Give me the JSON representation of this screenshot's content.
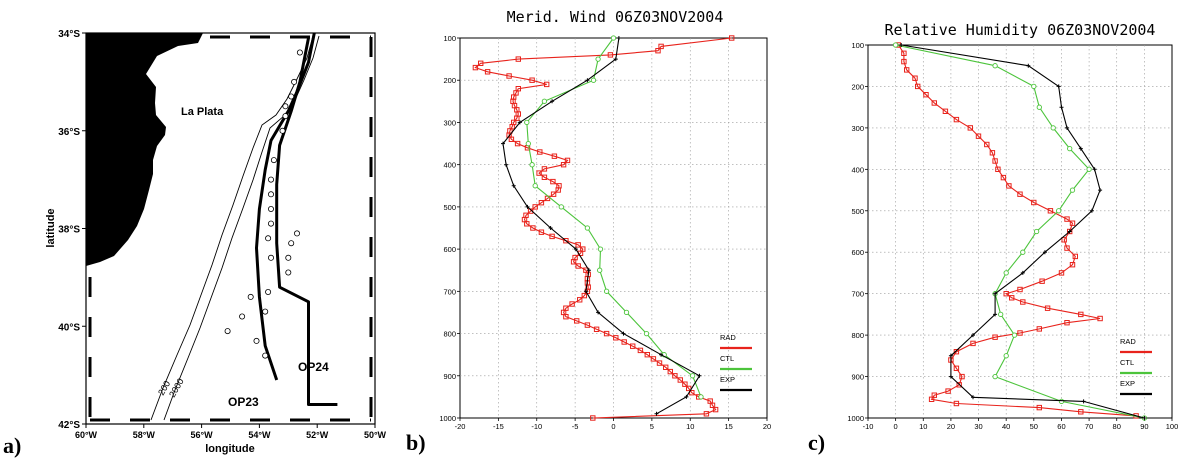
{
  "panels": {
    "a": {
      "letter": "a)",
      "xlabel": "longitude",
      "ylabel": "latitude",
      "region_label": "La Plata",
      "route_labels": [
        "OP24",
        "OP23"
      ],
      "contour_labels": [
        "200",
        "2000"
      ],
      "lat_ticks": [
        "34°S",
        "36°S",
        "38°S",
        "40°S",
        "42°S"
      ],
      "lon_ticks": [
        "60°W",
        "58°W",
        "56°W",
        "54°W",
        "52°W",
        "50°W"
      ],
      "colors": {
        "land": "#000000",
        "track": "#000000"
      }
    },
    "b": {
      "letter": "b)"
    },
    "c": {
      "letter": "c)"
    }
  },
  "chart_data": [
    {
      "id": "a",
      "type": "scatter",
      "xlabel": "longitude",
      "ylabel": "latitude",
      "xlim": [
        -60,
        -50
      ],
      "ylim": [
        -42,
        -34
      ],
      "tracks": [
        {
          "name": "OP24",
          "lon": [
            -52.3,
            -52.6,
            -52.9,
            -53.3,
            -53.4,
            -53.4,
            -53.3,
            -52.3,
            -52.3,
            -52.3,
            -51.3
          ],
          "lat": [
            -34.1,
            -35.0,
            -35.6,
            -36.3,
            -37.1,
            -38.3,
            -39.2,
            -39.5,
            -40.5,
            -41.6,
            -41.6
          ]
        },
        {
          "name": "OP23",
          "lon": [
            -52.1,
            -52.3,
            -52.7,
            -53.0,
            -53.6,
            -53.8,
            -54.0,
            -54.1,
            -54.0,
            -53.8,
            -53.4
          ],
          "lat": [
            -34.0,
            -34.6,
            -35.2,
            -35.6,
            -36.2,
            -36.8,
            -37.6,
            -38.4,
            -39.4,
            -40.4,
            -41.1
          ]
        }
      ],
      "stations": {
        "lon": [
          -52.6,
          -52.8,
          -52.9,
          -53.1,
          -53.1,
          -53.2,
          -53.5,
          -53.6,
          -53.6,
          -53.6,
          -53.6,
          -53.7,
          -53.6,
          -52.7,
          -52.9,
          -53.0,
          -53.0,
          -53.7,
          -53.8,
          -54.3,
          -54.6,
          -55.1,
          -53.8,
          -54.1
        ],
        "lat": [
          -34.4,
          -35.0,
          -35.3,
          -35.5,
          -35.7,
          -36.0,
          -36.6,
          -37.0,
          -37.3,
          -37.6,
          -37.9,
          -38.2,
          -38.6,
          -38.1,
          -38.3,
          -38.6,
          -38.9,
          -39.3,
          -39.7,
          -39.4,
          -39.8,
          -40.1,
          -40.6,
          -40.3
        ]
      }
    },
    {
      "id": "b",
      "type": "line",
      "title": "Merid. Wind 06Z03NOV2004",
      "xlim": [
        -20,
        20
      ],
      "ylim": [
        1000,
        100
      ],
      "x_ticks": [
        -20,
        -15,
        -10,
        -5,
        0,
        5,
        10,
        15,
        20
      ],
      "y_ticks": [
        100,
        200,
        300,
        400,
        500,
        600,
        700,
        800,
        900,
        1000
      ],
      "grid": true,
      "legend": [
        "RAD",
        "CTL",
        "EXP"
      ],
      "series": [
        {
          "name": "RAD",
          "color": "#e8231c",
          "marker": "square",
          "values": [
            [
              -2.7,
              1000
            ],
            [
              12.1,
              990
            ],
            [
              13.3,
              980
            ],
            [
              12.9,
              970
            ],
            [
              12.6,
              960
            ],
            [
              11.1,
              950
            ],
            [
              10.2,
              940
            ],
            [
              9.8,
              930
            ],
            [
              9.3,
              920
            ],
            [
              8.7,
              910
            ],
            [
              8.0,
              900
            ],
            [
              7.4,
              890
            ],
            [
              6.8,
              880
            ],
            [
              6.0,
              870
            ],
            [
              5.2,
              860
            ],
            [
              4.4,
              850
            ],
            [
              3.5,
              840
            ],
            [
              2.5,
              830
            ],
            [
              1.4,
              820
            ],
            [
              0.3,
              810
            ],
            [
              -0.9,
              800
            ],
            [
              -2.2,
              790
            ],
            [
              -3.4,
              780
            ],
            [
              -4.8,
              770
            ],
            [
              -6.2,
              760
            ],
            [
              -6.5,
              750
            ],
            [
              -6.2,
              740
            ],
            [
              -5.4,
              730
            ],
            [
              -4.4,
              720
            ],
            [
              -3.8,
              710
            ],
            [
              -3.4,
              700
            ],
            [
              -3.3,
              690
            ],
            [
              -3.4,
              680
            ],
            [
              -3.4,
              670
            ],
            [
              -3.3,
              660
            ],
            [
              -3.6,
              650
            ],
            [
              -4.6,
              640
            ],
            [
              -5.2,
              630
            ],
            [
              -5.0,
              620
            ],
            [
              -4.3,
              610
            ],
            [
              -4.0,
              600
            ],
            [
              -4.6,
              590
            ],
            [
              -6.2,
              580
            ],
            [
              -8.0,
              570
            ],
            [
              -9.4,
              560
            ],
            [
              -10.5,
              550
            ],
            [
              -11.3,
              540
            ],
            [
              -11.6,
              530
            ],
            [
              -11.4,
              520
            ],
            [
              -10.8,
              510
            ],
            [
              -10.2,
              500
            ],
            [
              -9.4,
              490
            ],
            [
              -8.6,
              480
            ],
            [
              -7.8,
              470
            ],
            [
              -7.2,
              460
            ],
            [
              -7.1,
              450
            ],
            [
              -7.9,
              440
            ],
            [
              -9.0,
              430
            ],
            [
              -9.7,
              420
            ],
            [
              -9.0,
              410
            ],
            [
              -6.5,
              400
            ],
            [
              -6.0,
              390
            ],
            [
              -7.7,
              380
            ],
            [
              -9.6,
              370
            ],
            [
              -11.2,
              360
            ],
            [
              -12.5,
              350
            ],
            [
              -13.3,
              340
            ],
            [
              -13.6,
              330
            ],
            [
              -13.5,
              320
            ],
            [
              -13.2,
              310
            ],
            [
              -13.0,
              300
            ],
            [
              -12.6,
              290
            ],
            [
              -12.4,
              280
            ],
            [
              -12.6,
              270
            ],
            [
              -12.9,
              260
            ],
            [
              -13.1,
              250
            ],
            [
              -13.0,
              240
            ],
            [
              -12.7,
              230
            ],
            [
              -12.4,
              220
            ],
            [
              -8.7,
              210
            ],
            [
              -10.6,
              200
            ],
            [
              -13.6,
              190
            ],
            [
              -16.4,
              180
            ],
            [
              -18.0,
              170
            ],
            [
              -17.3,
              160
            ],
            [
              -12.4,
              150
            ],
            [
              -0.4,
              140
            ],
            [
              5.8,
              130
            ],
            [
              6.2,
              120
            ],
            [
              15.4,
              100
            ]
          ]
        },
        {
          "name": "CTL",
          "color": "#4cc43b",
          "marker": "circle",
          "values": [
            [
              11.4,
              950
            ],
            [
              10.3,
              900
            ],
            [
              6.6,
              850
            ],
            [
              4.3,
              800
            ],
            [
              1.7,
              750
            ],
            [
              -0.9,
              700
            ],
            [
              -1.8,
              650
            ],
            [
              -1.7,
              600
            ],
            [
              -3.4,
              550
            ],
            [
              -6.8,
              500
            ],
            [
              -10.2,
              450
            ],
            [
              -10.6,
              400
            ],
            [
              -11.1,
              350
            ],
            [
              -11.3,
              300
            ],
            [
              -9.0,
              250
            ],
            [
              -2.6,
              200
            ],
            [
              -2.0,
              150
            ],
            [
              0.0,
              100
            ]
          ]
        },
        {
          "name": "EXP",
          "color": "#000000",
          "marker": "plus",
          "values": [
            [
              5.6,
              990
            ],
            [
              9.5,
              950
            ],
            [
              11.2,
              900
            ],
            [
              6.2,
              850
            ],
            [
              1.3,
              800
            ],
            [
              -2.0,
              750
            ],
            [
              -3.6,
              700
            ],
            [
              -3.2,
              650
            ],
            [
              -4.9,
              600
            ],
            [
              -8.2,
              550
            ],
            [
              -11.2,
              500
            ],
            [
              -13.0,
              450
            ],
            [
              -14.0,
              400
            ],
            [
              -14.4,
              350
            ],
            [
              -12.2,
              300
            ],
            [
              -8.0,
              250
            ],
            [
              -3.4,
              200
            ],
            [
              0.3,
              150
            ],
            [
              0.7,
              100
            ]
          ]
        }
      ]
    },
    {
      "id": "c",
      "type": "line",
      "title": "Relative Humidity 06Z03NOV2004",
      "xlim": [
        -10,
        100
      ],
      "ylim": [
        1000,
        100
      ],
      "x_ticks": [
        -10,
        0,
        10,
        20,
        30,
        40,
        50,
        60,
        70,
        80,
        90,
        100
      ],
      "y_ticks": [
        100,
        200,
        300,
        400,
        500,
        600,
        700,
        800,
        900,
        1000
      ],
      "grid": true,
      "legend": [
        "RAD",
        "CTL",
        "EXP"
      ],
      "series": [
        {
          "name": "RAD",
          "color": "#e8231c",
          "marker": "square",
          "values": [
            [
              1,
              100
            ],
            [
              3,
              120
            ],
            [
              3,
              140
            ],
            [
              4,
              160
            ],
            [
              7,
              180
            ],
            [
              8,
              200
            ],
            [
              11,
              220
            ],
            [
              14,
              240
            ],
            [
              18,
              260
            ],
            [
              22,
              280
            ],
            [
              27,
              300
            ],
            [
              30,
              320
            ],
            [
              33,
              340
            ],
            [
              35,
              360
            ],
            [
              36,
              380
            ],
            [
              37,
              400
            ],
            [
              39,
              420
            ],
            [
              41,
              440
            ],
            [
              45,
              460
            ],
            [
              50,
              480
            ],
            [
              56,
              500
            ],
            [
              62,
              520
            ],
            [
              64,
              530
            ],
            [
              63,
              550
            ],
            [
              61,
              570
            ],
            [
              62,
              590
            ],
            [
              65,
              610
            ],
            [
              64,
              630
            ],
            [
              60,
              650
            ],
            [
              53,
              670
            ],
            [
              45,
              690
            ],
            [
              40,
              700
            ],
            [
              42,
              710
            ],
            [
              46,
              720
            ],
            [
              55,
              735
            ],
            [
              67,
              750
            ],
            [
              74,
              760
            ],
            [
              62,
              770
            ],
            [
              52,
              785
            ],
            [
              45,
              795
            ],
            [
              36,
              805
            ],
            [
              28,
              820
            ],
            [
              22,
              840
            ],
            [
              20,
              860
            ],
            [
              22,
              880
            ],
            [
              24,
              900
            ],
            [
              23,
              920
            ],
            [
              19,
              935
            ],
            [
              14,
              945
            ],
            [
              13,
              955
            ],
            [
              22,
              965
            ],
            [
              52,
              975
            ],
            [
              67,
              985
            ],
            [
              87,
              995
            ]
          ]
        },
        {
          "name": "CTL",
          "color": "#4cc43b",
          "marker": "circle",
          "values": [
            [
              90,
              1000
            ],
            [
              60,
              960
            ],
            [
              36,
              900
            ],
            [
              40,
              850
            ],
            [
              43,
              800
            ],
            [
              38,
              750
            ],
            [
              36,
              700
            ],
            [
              40,
              650
            ],
            [
              46,
              600
            ],
            [
              51,
              550
            ],
            [
              59,
              500
            ],
            [
              64,
              450
            ],
            [
              70,
              400
            ],
            [
              63,
              350
            ],
            [
              57,
              300
            ],
            [
              52,
              250
            ],
            [
              50,
              200
            ],
            [
              36,
              150
            ],
            [
              0,
              100
            ]
          ]
        },
        {
          "name": "EXP",
          "color": "#000000",
          "marker": "plus",
          "values": [
            [
              90,
              1000
            ],
            [
              68,
              960
            ],
            [
              28,
              950
            ],
            [
              20,
              900
            ],
            [
              20,
              850
            ],
            [
              28,
              800
            ],
            [
              36,
              750
            ],
            [
              36,
              700
            ],
            [
              46,
              650
            ],
            [
              54,
              600
            ],
            [
              63,
              550
            ],
            [
              71,
              500
            ],
            [
              74,
              450
            ],
            [
              72,
              400
            ],
            [
              67,
              350
            ],
            [
              62,
              300
            ],
            [
              60,
              250
            ],
            [
              59,
              200
            ],
            [
              48,
              150
            ],
            [
              2,
              100
            ]
          ]
        }
      ]
    }
  ]
}
